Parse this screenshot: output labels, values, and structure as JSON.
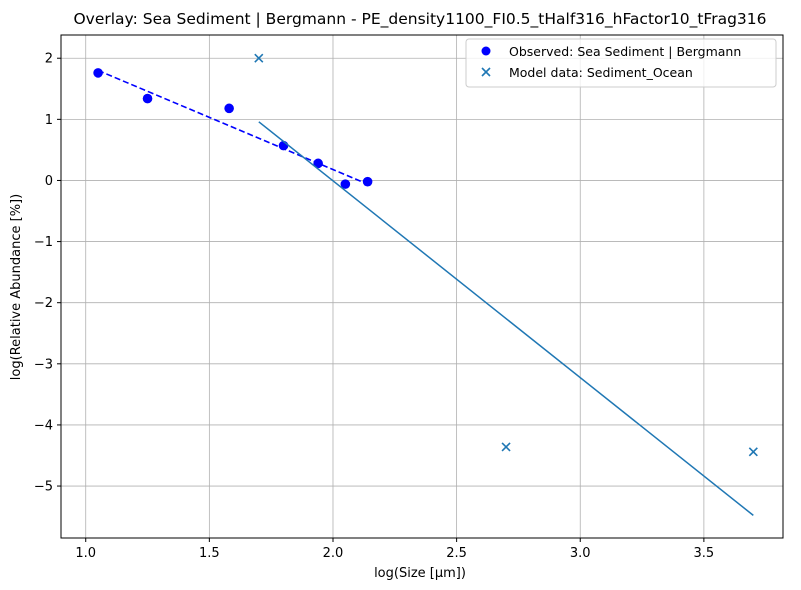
{
  "chart_data": {
    "type": "scatter",
    "title": "Overlay: Sea Sediment | Bergmann - PE_density1100_FI0.5_tHalf316_hFactor10_tFrag316",
    "xlabel": "log(Size [µm])",
    "ylabel": "log(Relative Abundance [%])",
    "xlim": [
      0.9,
      3.82
    ],
    "ylim": [
      -5.85,
      2.38
    ],
    "xticks": [
      1.0,
      1.5,
      2.0,
      2.5,
      3.0,
      3.5
    ],
    "xtick_labels": [
      "1.0",
      "1.5",
      "2.0",
      "2.5",
      "3.0",
      "3.5"
    ],
    "yticks": [
      2,
      1,
      0,
      -1,
      -2,
      -3,
      -4,
      -5
    ],
    "ytick_labels": [
      "2",
      "1",
      "0",
      "−1",
      "−2",
      "−3",
      "−4",
      "−5"
    ],
    "grid": true,
    "legend_position": "top-right",
    "series": [
      {
        "name": "Observed: Sea Sediment | Bergmann",
        "kind": "scatter",
        "marker": "circle",
        "color": "#0000ff",
        "x": [
          1.05,
          1.25,
          1.58,
          1.8,
          1.94,
          2.05,
          2.14
        ],
        "y": [
          1.76,
          1.34,
          1.18,
          0.57,
          0.28,
          -0.06,
          -0.02
        ]
      },
      {
        "kind": "line",
        "style": "dashed",
        "color": "#0000ff",
        "x": [
          1.05,
          2.14
        ],
        "y": [
          1.8,
          -0.06
        ]
      },
      {
        "name": "Model data: Sediment_Ocean",
        "kind": "scatter",
        "marker": "x",
        "color": "#1f77b4",
        "x": [
          1.7,
          2.7,
          3.7
        ],
        "y": [
          2.0,
          -4.36,
          -4.44
        ]
      },
      {
        "kind": "line",
        "style": "solid",
        "color": "#1f77b4",
        "x": [
          1.7,
          3.7
        ],
        "y": [
          0.96,
          -5.48
        ]
      }
    ]
  }
}
